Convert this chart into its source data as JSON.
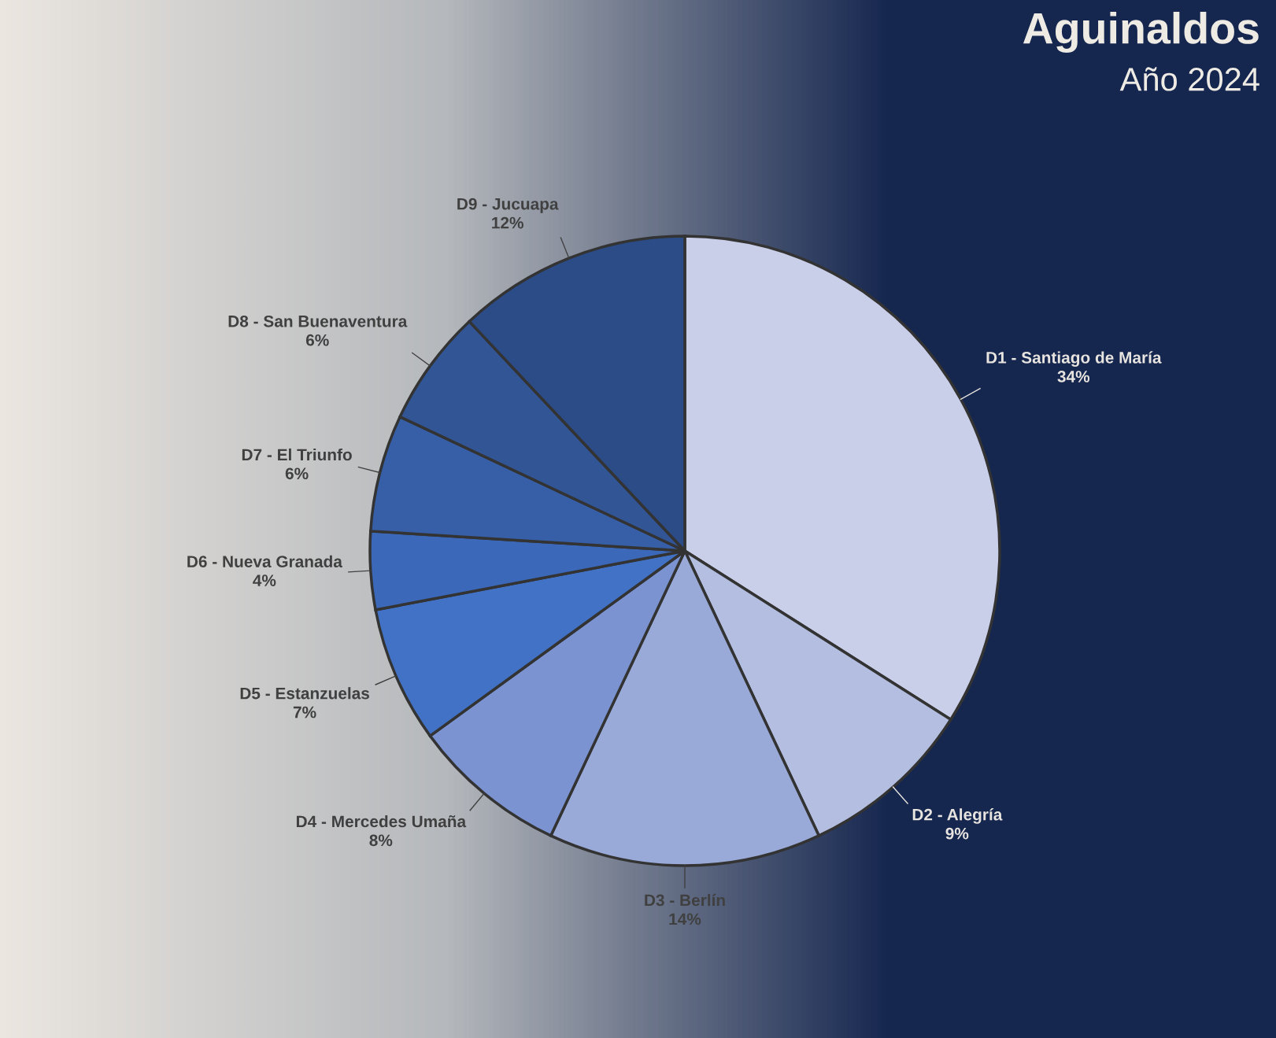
{
  "chart_data": {
    "type": "pie",
    "title": "Aguinaldos",
    "subtitle": "Año 2024",
    "categories": [
      "D1 - Santiago de María",
      "D2 - Alegría",
      "D3 - Berlín",
      "D4 - Mercedes Umaña",
      "D5 - Estanzuelas",
      "D6 - Nueva Granada",
      "D7 - El Triunfo",
      "D8 - San Buenaventura",
      "D9 - Jucuapa"
    ],
    "values": [
      34,
      9,
      14,
      8,
      7,
      4,
      6,
      6,
      12
    ],
    "colors": [
      "#cacfe9",
      "#b3bee0",
      "#99aad8",
      "#7b93d0",
      "#4272c6",
      "#3b68b8",
      "#375fa8",
      "#325596",
      "#2c4c88"
    ],
    "value_labels": [
      "34%",
      "9%",
      "14%",
      "8%",
      "7%",
      "4%",
      "6%",
      "6%",
      "12%"
    ],
    "legend": false
  }
}
